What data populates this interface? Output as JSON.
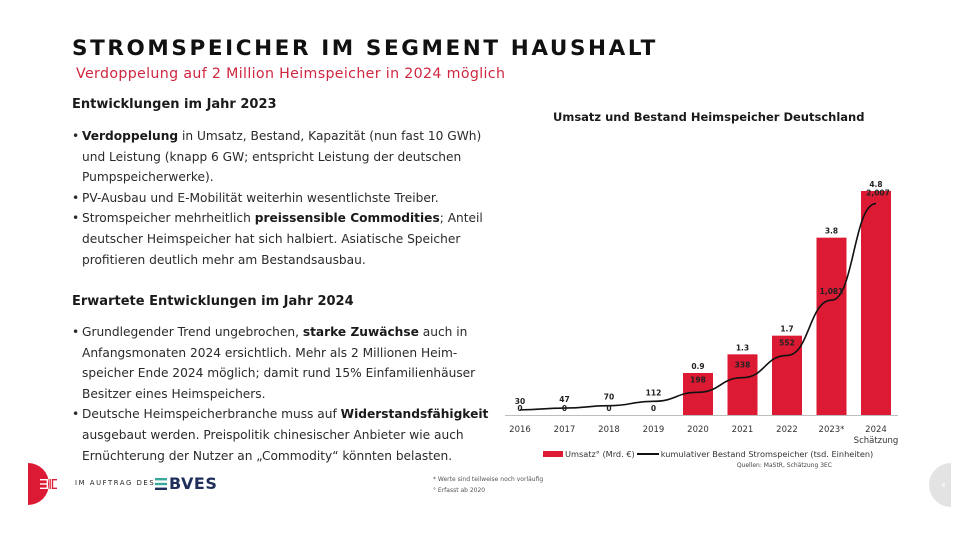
{
  "header": {
    "title": "STROMSPEICHER IM SEGMENT HAUSHALT",
    "subtitle": "Verdoppelung auf 2 Million Heimspeicher in 2024 möglich"
  },
  "section_2023": {
    "heading": "Entwicklungen im Jahr 2023",
    "bullets": [
      {
        "lines": [
          {
            "bold": "Verdoppelung",
            "text": " in Umsatz, Bestand, Kapazität (nun fast 10 GWh)"
          },
          {
            "text": "und Leistung (knapp 6 GW; entspricht Leistung der deutschen"
          },
          {
            "text": "Pumpspeicherwerke)."
          }
        ]
      },
      {
        "lines": [
          {
            "text": "PV-Ausbau und E-Mobilität weiterhin wesentlichste Treiber."
          }
        ]
      },
      {
        "lines": [
          {
            "pre": "Stromspeicher mehrheitlich ",
            "bold": "preissensible Commodities",
            "text": "; Anteil"
          },
          {
            "text": "deutscher Heimspeicher hat sich halbiert. Asiatische Speicher"
          },
          {
            "text": "profitieren deutlich mehr am Bestandsausbau."
          }
        ]
      }
    ]
  },
  "section_2024": {
    "heading": "Erwartete Entwicklungen im Jahr 2024",
    "bullets": [
      {
        "lines": [
          {
            "pre": "Grundlegender Trend ungebrochen, ",
            "bold": "starke Zuwächse",
            "text": " auch in"
          },
          {
            "text": "Anfangsmonaten 2024 ersichtlich. Mehr als 2 Millionen Heim-"
          },
          {
            "text": "speicher Ende 2024 möglich; damit rund 15% Einfamilienhäuser"
          },
          {
            "text": "Besitzer eines Heimspeichers."
          }
        ]
      },
      {
        "lines": [
          {
            "pre": "Deutsche Heimspeicherbranche muss auf ",
            "bold": "Widerstandsfähigkeit"
          },
          {
            "text": "ausgebaut werden. Preispolitik chinesischer Anbieter wie auch"
          },
          {
            "text": "Ernüchterung der Nutzer an „Commodity“ könnten belasten."
          }
        ]
      }
    ]
  },
  "chart_data": {
    "type": "bar",
    "title": "Umsatz und Bestand Heimspeicher Deutschland",
    "categories": [
      "2016",
      "2017",
      "2018",
      "2019",
      "2020",
      "2021",
      "2022",
      "2023*",
      "2024"
    ],
    "category_sublabels": [
      "",
      "",
      "",
      "",
      "",
      "",
      "",
      "",
      "Schätzung"
    ],
    "series": [
      {
        "name": "Umsatz° (Mrd. €)",
        "kind": "bar",
        "color": "#dc1a34",
        "values": [
          0,
          0,
          0,
          0,
          0.9,
          1.3,
          1.7,
          3.8,
          4.8
        ],
        "labels": [
          "0",
          "0",
          "0",
          "0",
          "0.9",
          "1.3",
          "1.7",
          "3.8",
          "4.8"
        ]
      },
      {
        "name": "kumulativer Bestand Stromspeicher (tsd. Einheiten)",
        "kind": "line",
        "color": "#111111",
        "values": [
          30,
          47,
          70,
          112,
          198,
          338,
          552,
          1081,
          2007
        ],
        "labels": [
          "30",
          "47",
          "70",
          "112",
          "198",
          "338",
          "552",
          "1,081",
          "2,007"
        ]
      }
    ],
    "bar_ylim": [
      0,
      4.8
    ],
    "line_ylim": [
      0,
      2300
    ],
    "xlabel": "",
    "ylabel": "",
    "grid": false,
    "legend_position": "bottom",
    "source": "Quellen: MaStR, Schätzung 3EC",
    "footnotes": [
      "* Werte sind teilweise noch vorläufig",
      "° Erfasst ab 2020"
    ]
  },
  "footer": {
    "logo_3ec": "3EC",
    "commission_text": "IM AUFTRAG DES",
    "partner_logo": "BVES",
    "brand_color": "#dc1a34",
    "partner_color": "#1f2e5a"
  }
}
